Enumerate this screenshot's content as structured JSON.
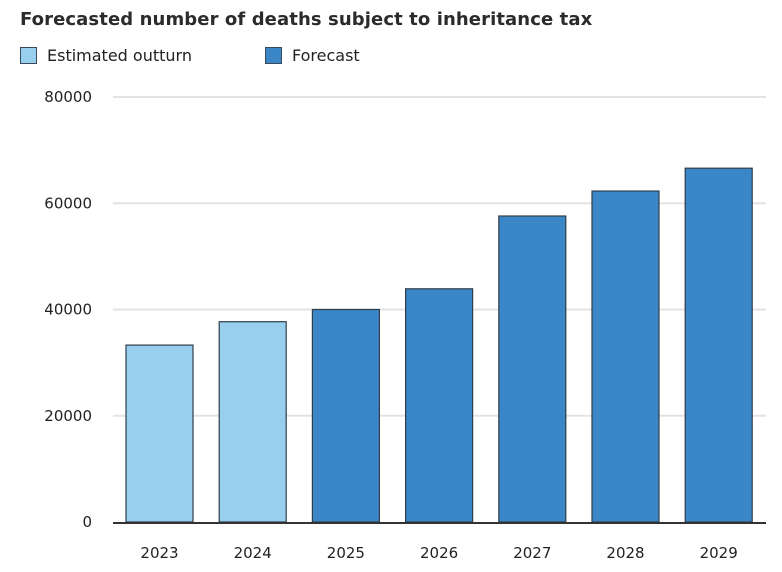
{
  "chart_data": {
    "type": "bar",
    "title": "Forecasted number of deaths subject to inheritance tax",
    "xlabel": "",
    "ylabel": "",
    "categories": [
      "2023",
      "2024",
      "2025",
      "2026",
      "2027",
      "2028",
      "2029"
    ],
    "series": [
      {
        "name": "Estimated outturn",
        "color": "#99cfee",
        "values": [
          33300,
          37700,
          null,
          null,
          null,
          null,
          null
        ]
      },
      {
        "name": "Forecast",
        "color": "#3b86c6",
        "values": [
          null,
          null,
          40000,
          43900,
          57600,
          62300,
          66600
        ]
      }
    ],
    "ylim": [
      0,
      80000
    ],
    "yticks": [
      0,
      20000,
      40000,
      60000,
      80000
    ],
    "grid": true,
    "legend": "top-left"
  },
  "colors": {
    "estimated": "#99cfee",
    "forecast": "#3b86c6",
    "bar_border": "#2f3d4a",
    "grid": "#e3e3e3",
    "axis": "#333333"
  }
}
